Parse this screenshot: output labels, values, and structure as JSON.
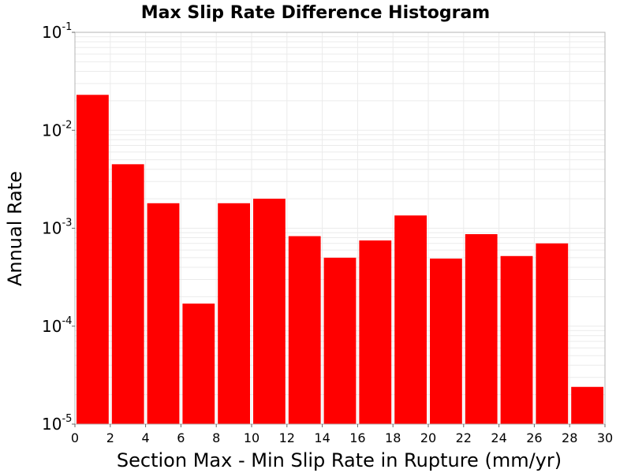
{
  "chart_data": {
    "type": "bar",
    "title": "Max Slip Rate Difference Histogram",
    "xlabel": "Section Max - Min Slip Rate in Rupture (mm/yr)",
    "ylabel": "Annual Rate",
    "x_scale": "linear",
    "y_scale": "log",
    "xlim": [
      0,
      30
    ],
    "ylim": [
      1e-05,
      0.1
    ],
    "x_ticks": [
      0,
      2,
      4,
      6,
      8,
      10,
      12,
      14,
      16,
      18,
      20,
      22,
      24,
      26,
      28,
      30
    ],
    "x_tick_labels": [
      "0",
      "2",
      "4",
      "6",
      "8",
      "10",
      "12",
      "14",
      "16",
      "18",
      "20",
      "22",
      "24",
      "26",
      "28",
      "30"
    ],
    "y_ticks": [
      0.1,
      0.01,
      0.001,
      0.0001,
      1e-05
    ],
    "y_tick_labels": [
      {
        "base": "10",
        "exp": "-1"
      },
      {
        "base": "10",
        "exp": "-2"
      },
      {
        "base": "10",
        "exp": "-3"
      },
      {
        "base": "10",
        "exp": "-4"
      },
      {
        "base": "10",
        "exp": "-5"
      }
    ],
    "bin_width": 2,
    "bins": [
      {
        "x_start": 0,
        "x_end": 2,
        "value": 0.023
      },
      {
        "x_start": 2,
        "x_end": 4,
        "value": 0.0045
      },
      {
        "x_start": 4,
        "x_end": 6,
        "value": 0.0018
      },
      {
        "x_start": 6,
        "x_end": 8,
        "value": 0.00017
      },
      {
        "x_start": 8,
        "x_end": 10,
        "value": 0.0018
      },
      {
        "x_start": 10,
        "x_end": 12,
        "value": 0.002
      },
      {
        "x_start": 12,
        "x_end": 14,
        "value": 0.00083
      },
      {
        "x_start": 14,
        "x_end": 16,
        "value": 0.0005
      },
      {
        "x_start": 16,
        "x_end": 18,
        "value": 0.00075
      },
      {
        "x_start": 18,
        "x_end": 20,
        "value": 0.00135
      },
      {
        "x_start": 20,
        "x_end": 22,
        "value": 0.00049
      },
      {
        "x_start": 22,
        "x_end": 24,
        "value": 0.00087
      },
      {
        "x_start": 24,
        "x_end": 26,
        "value": 0.00052
      },
      {
        "x_start": 26,
        "x_end": 28,
        "value": 0.0007
      },
      {
        "x_start": 28,
        "x_end": 30,
        "value": 2.4e-05
      }
    ],
    "grid": true,
    "legend": "none",
    "colors": {
      "bar": "#ff0000",
      "gridline": "#ebebeb",
      "frame": "#b4b4b4",
      "background": "#ffffff"
    }
  }
}
